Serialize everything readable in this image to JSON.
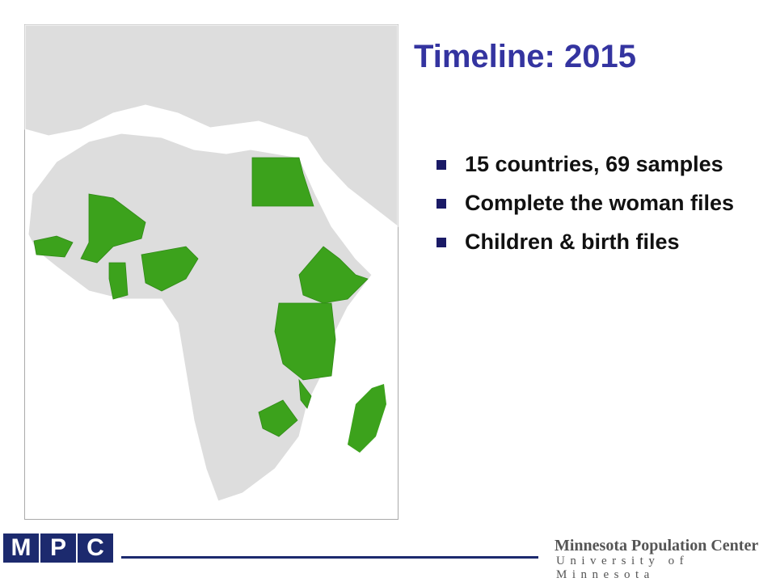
{
  "slide": {
    "title": "Timeline: 2015",
    "bullets": [
      "15 countries, 69 samples",
      "Complete the woman files",
      "Children & birth files"
    ]
  },
  "footer": {
    "logo": "MPC",
    "center_name": "Minnesota Population Center",
    "university": "University of Minnesota"
  }
}
